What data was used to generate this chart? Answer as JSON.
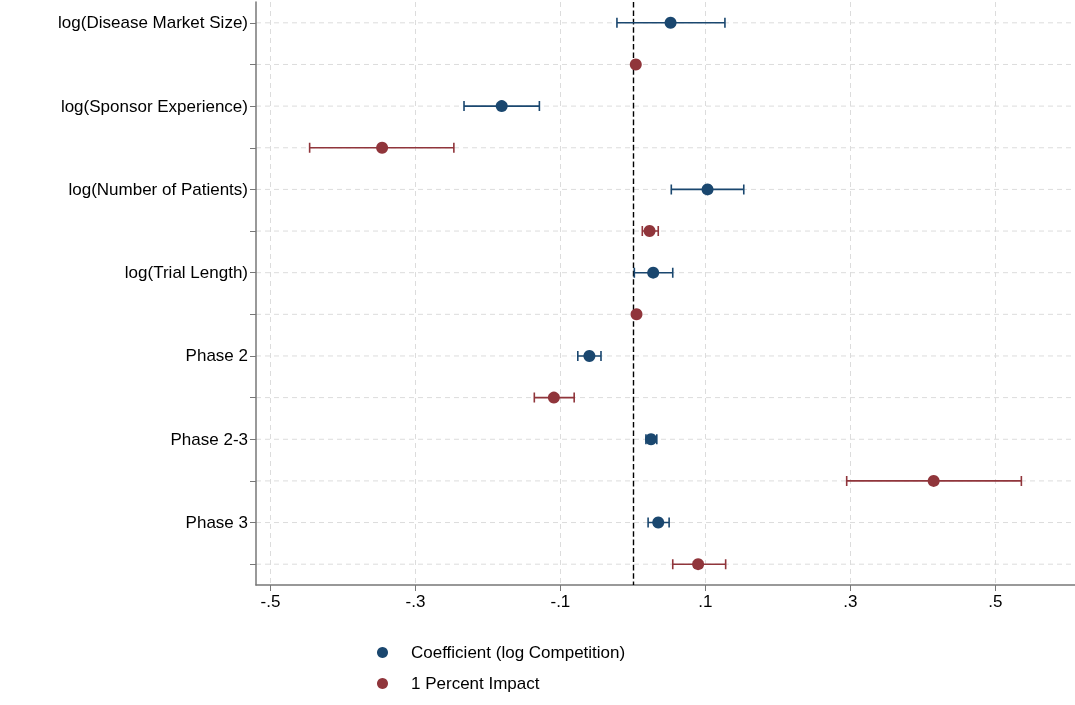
{
  "chart_data": {
    "type": "scatter",
    "categories": [
      "log(Disease Market Size)",
      null,
      "log(Sponsor Experience)",
      null,
      "log(Number of Patients)",
      null,
      "log(Trial Length)",
      null,
      "Phase 2",
      null,
      "Phase 2-3",
      null,
      "Phase 3",
      null
    ],
    "series": [
      {
        "name": "Coefficient (log Competition)",
        "color": "#1a476f",
        "values": [
          0.052,
          null,
          -0.181,
          null,
          0.103,
          null,
          0.028,
          null,
          -0.06,
          null,
          0.025,
          null,
          0.035,
          null
        ],
        "errors": [
          [
            -0.022,
            0.127
          ],
          null,
          [
            -0.233,
            -0.129
          ],
          null,
          [
            0.053,
            0.153
          ],
          null,
          [
            0.002,
            0.055
          ],
          null,
          [
            -0.076,
            -0.044
          ],
          null,
          [
            0.018,
            0.033
          ],
          null,
          [
            0.021,
            0.05
          ],
          null
        ]
      },
      {
        "name": "1 Percent Impact",
        "color": "#90353b",
        "values": [
          null,
          0.004,
          null,
          -0.346,
          null,
          0.023,
          null,
          0.005,
          null,
          -0.109,
          null,
          0.415,
          null,
          0.09
        ],
        "errors": [
          null,
          null,
          null,
          [
            -0.446,
            -0.247
          ],
          null,
          [
            0.013,
            0.035
          ],
          null,
          null,
          null,
          [
            -0.136,
            -0.081
          ],
          null,
          [
            0.295,
            0.536
          ],
          null,
          [
            0.055,
            0.128
          ]
        ]
      }
    ],
    "orientation": "horizontal",
    "xlim": [
      -0.52,
      0.61
    ],
    "xticks": [
      {
        "value": -0.5,
        "label": "-.5"
      },
      {
        "value": -0.3,
        "label": "-.3"
      },
      {
        "value": -0.1,
        "label": "-.1"
      },
      {
        "value": 0.1,
        "label": ".1"
      },
      {
        "value": 0.3,
        "label": ".3"
      },
      {
        "value": 0.5,
        "label": ".5"
      }
    ],
    "ref_lines": [
      {
        "axis": "x",
        "value": 0,
        "label": null,
        "color": "#000000",
        "line_style": "dashed"
      }
    ],
    "grid": true,
    "legend": "bottom",
    "marker": "circle"
  }
}
